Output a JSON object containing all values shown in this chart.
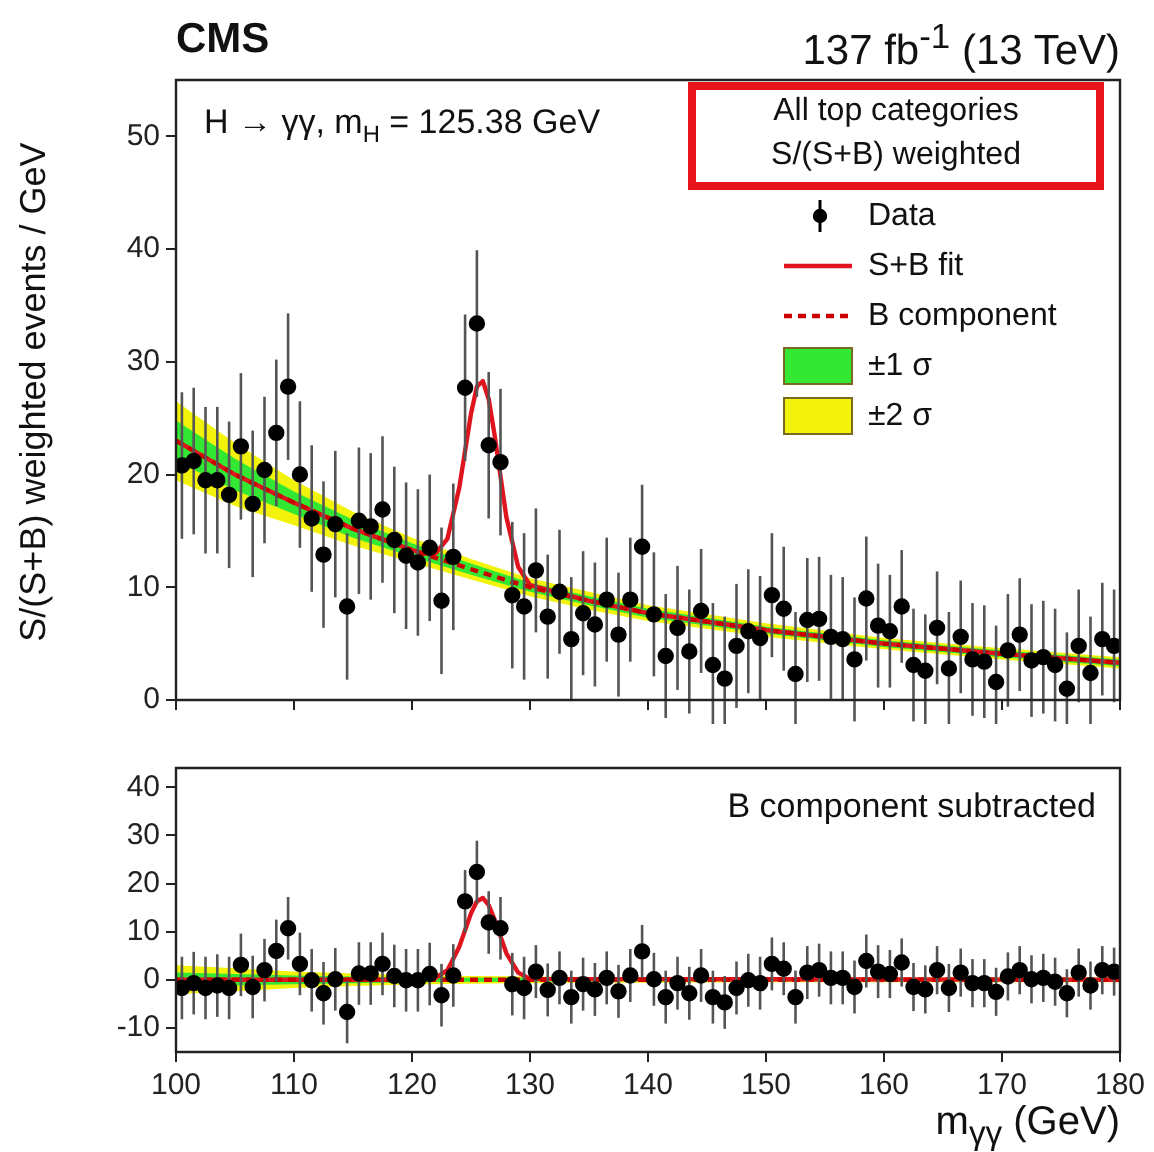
{
  "chart_data": [
    {
      "type": "scatter",
      "title": "CMS",
      "subtitle": "137 fb$^{-1}$ (13 TeV)",
      "ylabel": "S/(S+B) weighted events / GeV",
      "annotations": [
        "H → γγ, m$_{H}$ = 125.38 GeV",
        "All top categories\nS/(S+B) weighted"
      ],
      "xlim": [
        100,
        180
      ],
      "xticks": [
        100,
        110,
        120,
        130,
        140,
        150,
        160,
        170,
        180
      ],
      "ylim": [
        0,
        55
      ],
      "yticks": [
        0,
        10,
        20,
        30,
        40,
        50
      ],
      "tick_labels": "y",
      "grid": false,
      "legend": "top right",
      "series": [
        {
          "name": "Data",
          "marker": "circle",
          "color": "#000000",
          "x": [
            100.5,
            101.5,
            102.5,
            103.5,
            104.5,
            105.5,
            106.5,
            107.5,
            108.5,
            109.5,
            110.5,
            111.5,
            112.5,
            113.5,
            114.5,
            115.5,
            116.5,
            117.5,
            118.5,
            119.5,
            120.5,
            121.5,
            122.5,
            123.5,
            124.5,
            125.5,
            126.5,
            127.5,
            128.5,
            129.5,
            130.5,
            131.5,
            132.5,
            133.5,
            134.5,
            135.5,
            136.5,
            137.5,
            138.5,
            139.5,
            140.5,
            141.5,
            142.5,
            143.5,
            144.5,
            145.5,
            146.5,
            147.5,
            148.5,
            149.5,
            150.5,
            151.5,
            152.5,
            153.5,
            154.5,
            155.5,
            156.5,
            157.5,
            158.5,
            159.5,
            160.5,
            161.5,
            162.5,
            163.5,
            164.5,
            165.5,
            166.5,
            167.5,
            168.5,
            169.5,
            170.5,
            171.5,
            172.5,
            173.5,
            174.5,
            175.5,
            176.5,
            177.5,
            178.5,
            179.5
          ],
          "values": [
            20.8,
            21.2,
            19.5,
            19.5,
            18.2,
            22.5,
            17.4,
            20.4,
            23.7,
            27.8,
            20.0,
            16.1,
            12.9,
            15.6,
            8.3,
            15.9,
            15.4,
            16.9,
            14.2,
            12.8,
            12.2,
            13.5,
            8.8,
            12.7,
            27.7,
            33.4,
            22.6,
            21.1,
            9.3,
            8.3,
            11.5,
            7.4,
            9.6,
            5.4,
            7.7,
            6.7,
            8.9,
            5.8,
            8.9,
            13.6,
            7.6,
            3.9,
            6.4,
            4.3,
            7.9,
            3.1,
            1.9,
            4.8,
            6.1,
            5.5,
            9.3,
            8.1,
            2.3,
            7.1,
            7.2,
            5.6,
            5.4,
            3.6,
            9.0,
            6.6,
            6.1,
            8.3,
            3.1,
            2.6,
            6.4,
            2.8,
            5.6,
            3.6,
            3.4,
            1.6,
            4.4,
            5.8,
            3.5,
            3.8,
            3.1,
            1.0,
            4.8,
            2.4,
            5.4,
            4.8
          ],
          "errors": [
            6.5,
            6.5,
            6.5,
            6.5,
            6.5,
            6.5,
            6.5,
            6.5,
            6.5,
            6.5,
            6.5,
            6.5,
            6.5,
            6.5,
            6.5,
            6.5,
            6.5,
            6.5,
            6.5,
            6.5,
            6.5,
            6.5,
            6.5,
            6.5,
            6.5,
            6.5,
            6.5,
            6.5,
            6.5,
            6.5,
            5.5,
            5.5,
            5.5,
            5.5,
            5.5,
            5.5,
            5.5,
            5.5,
            5.5,
            5.5,
            5.5,
            5.5,
            5.5,
            5.5,
            5.5,
            5.5,
            5.5,
            5.5,
            5.5,
            5.5,
            5.5,
            5.5,
            5.5,
            5.5,
            5.5,
            5.5,
            5.5,
            5.5,
            5.5,
            5.5,
            5,
            5,
            5,
            5,
            5,
            5,
            5,
            5,
            5,
            5,
            5,
            5,
            5,
            5,
            5,
            5,
            5,
            5,
            5,
            5
          ]
        },
        {
          "name": "S+B fit",
          "type": "line",
          "color": "#e0141e",
          "line_style": "solid",
          "x": [
            100,
            105,
            110,
            115,
            120,
            121,
            122,
            123,
            124,
            125,
            125.5,
            126,
            126.5,
            127,
            128,
            129,
            130,
            135,
            140,
            150,
            160,
            170,
            180
          ],
          "values": [
            23,
            20,
            17.5,
            15.2,
            13.3,
            13.0,
            13.0,
            14.3,
            18.8,
            25.4,
            27.8,
            28.3,
            26.7,
            23.5,
            16.2,
            11.8,
            10.2,
            8.8,
            7.7,
            6.2,
            5.0,
            4.1,
            3.3
          ]
        },
        {
          "name": "B component",
          "type": "line",
          "color": "#cc0000",
          "line_style": "dashed",
          "x": [
            100,
            105,
            110,
            115,
            120,
            125,
            130,
            135,
            140,
            150,
            160,
            170,
            180
          ],
          "values": [
            23,
            20,
            17.5,
            15.2,
            13.3,
            11.6,
            10,
            8.8,
            7.7,
            6.2,
            5.0,
            4.1,
            3.3
          ]
        },
        {
          "name": "±1 σ",
          "type": "line",
          "color": "#33e833",
          "x": [
            100,
            105,
            110,
            115,
            120,
            125,
            130,
            135,
            140,
            150,
            160,
            170,
            180
          ],
          "values": [
            null,
            null,
            null,
            null,
            null,
            null,
            null,
            null,
            null,
            null,
            null,
            null,
            null
          ],
          "lower": [
            21.2,
            18.6,
            16.5,
            14.4,
            12.7,
            11.1,
            9.6,
            8.4,
            7.3,
            5.9,
            4.7,
            3.8,
            3.0
          ],
          "upper": [
            24.8,
            21.4,
            18.5,
            16.0,
            13.9,
            12.1,
            10.4,
            9.2,
            8.1,
            6.5,
            5.3,
            4.4,
            3.6
          ]
        },
        {
          "name": "±2 σ",
          "type": "line",
          "color": "#f2f20a",
          "x": [
            100,
            105,
            110,
            115,
            120,
            125,
            130,
            135,
            140,
            150,
            160,
            170,
            180
          ],
          "values": [
            null,
            null,
            null,
            null,
            null,
            null,
            null,
            null,
            null,
            null,
            null,
            null,
            null
          ],
          "lower": [
            19.5,
            17.2,
            15.5,
            13.7,
            12.2,
            10.7,
            9.2,
            8.0,
            7.0,
            5.6,
            4.5,
            3.6,
            2.8
          ],
          "upper": [
            26.5,
            22.8,
            19.5,
            16.7,
            14.4,
            12.5,
            10.8,
            9.6,
            8.4,
            6.8,
            5.5,
            4.6,
            3.8
          ]
        }
      ]
    },
    {
      "type": "scatter",
      "xlabel": "m$_{γγ}$ (GeV)",
      "annotations": [
        "B component subtracted"
      ],
      "xlim": [
        100,
        180
      ],
      "xticks": [
        100,
        110,
        120,
        130,
        140,
        150,
        160,
        170,
        180
      ],
      "ylim": [
        -15,
        44
      ],
      "yticks": [
        -10,
        0,
        10,
        20,
        30,
        40
      ],
      "grid": false,
      "legend": false,
      "series": [
        {
          "marker": "circle",
          "color": "#000000",
          "x": [
            100.5,
            101.5,
            102.5,
            103.5,
            104.5,
            105.5,
            106.5,
            107.5,
            108.5,
            109.5,
            110.5,
            111.5,
            112.5,
            113.5,
            114.5,
            115.5,
            116.5,
            117.5,
            118.5,
            119.5,
            120.5,
            121.5,
            122.5,
            123.5,
            124.5,
            125.5,
            126.5,
            127.5,
            128.5,
            129.5,
            130.5,
            131.5,
            132.5,
            133.5,
            134.5,
            135.5,
            136.5,
            137.5,
            138.5,
            139.5,
            140.5,
            141.5,
            142.5,
            143.5,
            144.5,
            145.5,
            146.5,
            147.5,
            148.5,
            149.5,
            150.5,
            151.5,
            152.5,
            153.5,
            154.5,
            155.5,
            156.5,
            157.5,
            158.5,
            159.5,
            160.5,
            161.5,
            162.5,
            163.5,
            164.5,
            165.5,
            166.5,
            167.5,
            168.5,
            169.5,
            170.5,
            171.5,
            172.5,
            173.5,
            174.5,
            175.5,
            176.5,
            177.5,
            178.5,
            179.5
          ],
          "values": [
            -1.7,
            -0.7,
            -1.7,
            -1.2,
            -1.7,
            3.1,
            -1.5,
            2.0,
            6.0,
            10.7,
            3.3,
            -0.1,
            -2.8,
            0.1,
            -6.7,
            1.3,
            1.3,
            3.3,
            0.8,
            -0.1,
            -0.1,
            1.2,
            -3.2,
            0.9,
            16.3,
            22.4,
            11.9,
            10.7,
            -0.9,
            -1.7,
            1.7,
            -2.1,
            0.4,
            -3.6,
            -0.9,
            -2.0,
            0.4,
            -2.4,
            0.9,
            5.9,
            0.1,
            -3.6,
            -0.7,
            -2.8,
            0.9,
            -3.6,
            -4.7,
            -1.7,
            -0.1,
            -0.7,
            3.3,
            2.3,
            -3.6,
            1.5,
            2.0,
            0.4,
            0.4,
            -1.5,
            3.9,
            1.7,
            1.2,
            3.6,
            -1.5,
            -2.0,
            2.0,
            -1.7,
            1.5,
            -0.7,
            -0.7,
            -2.5,
            0.7,
            2.0,
            0.1,
            0.4,
            -0.4,
            -2.8,
            1.5,
            -1.2,
            2.0,
            1.7
          ],
          "errors": [
            6.5,
            6.5,
            6.5,
            6.5,
            6.5,
            6.5,
            6.5,
            6.5,
            6.5,
            6.5,
            6.5,
            6.5,
            6.5,
            6.5,
            6.5,
            6.5,
            6.5,
            6.5,
            6.5,
            6.5,
            6.5,
            6.5,
            6.5,
            6.5,
            6.5,
            6.5,
            6.5,
            6.5,
            6.5,
            6.5,
            5.5,
            5.5,
            5.5,
            5.5,
            5.5,
            5.5,
            5.5,
            5.5,
            5.5,
            5.5,
            5.5,
            5.5,
            5.5,
            5.5,
            5.5,
            5.5,
            5.5,
            5.5,
            5.5,
            5.5,
            5.5,
            5.5,
            5.5,
            5.5,
            5.5,
            5.5,
            5.5,
            5.5,
            5.5,
            5.5,
            5,
            5,
            5,
            5,
            5,
            5,
            5,
            5,
            5,
            5,
            5,
            5,
            5,
            5,
            5,
            5,
            5,
            5,
            5,
            5
          ]
        },
        {
          "type": "line",
          "color": "#e0141e",
          "line_style": "solid",
          "x": [
            100,
            120,
            122,
            123,
            124,
            125,
            125.5,
            126,
            126.5,
            127,
            128,
            129,
            130,
            180
          ],
          "values": [
            0,
            0,
            0.4,
            2.0,
            6.8,
            13.8,
            16.3,
            17,
            15.5,
            12.5,
            5.5,
            1.5,
            0.2,
            0
          ]
        },
        {
          "type": "line",
          "color": "#cc0000",
          "line_style": "dashed",
          "x": [
            100,
            180
          ],
          "values": [
            0,
            0
          ]
        },
        {
          "type": "line",
          "color": "#33e833",
          "x": [
            100,
            105,
            110,
            115,
            120,
            125,
            130,
            135,
            140,
            150,
            160,
            170,
            180
          ],
          "values": [
            null,
            null,
            null,
            null,
            null,
            null,
            null,
            null,
            null,
            null,
            null,
            null,
            null
          ],
          "lower": [
            -1.5,
            -1.2,
            -0.9,
            -0.7,
            -0.5,
            -0.4,
            -0.4,
            -0.3,
            -0.3,
            -0.3,
            -0.3,
            -0.3,
            -0.3
          ],
          "upper": [
            1.5,
            1.2,
            0.9,
            0.7,
            0.5,
            0.4,
            0.4,
            0.3,
            0.3,
            0.3,
            0.3,
            0.3,
            0.3
          ]
        },
        {
          "type": "line",
          "color": "#f2f20a",
          "x": [
            100,
            105,
            110,
            115,
            120,
            125,
            130,
            135,
            140,
            150,
            160,
            170,
            180
          ],
          "values": [
            null,
            null,
            null,
            null,
            null,
            null,
            null,
            null,
            null,
            null,
            null,
            null,
            null
          ],
          "lower": [
            -3,
            -2.4,
            -1.7,
            -1.3,
            -1,
            -0.8,
            -0.7,
            -0.6,
            -0.6,
            -0.5,
            -0.5,
            -0.5,
            -0.5
          ],
          "upper": [
            3,
            2.4,
            1.7,
            1.3,
            1,
            0.8,
            0.7,
            0.6,
            0.6,
            0.5,
            0.5,
            0.5,
            0.5
          ]
        }
      ]
    }
  ]
}
